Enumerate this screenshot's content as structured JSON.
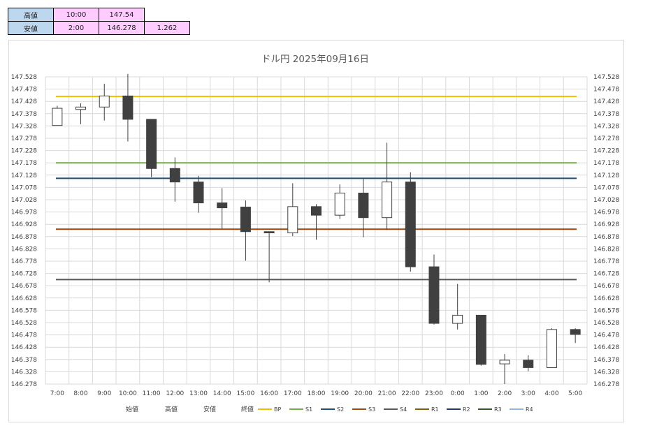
{
  "summary": {
    "high": {
      "label": "高値",
      "time": "10:00",
      "value": "147.54"
    },
    "low": {
      "label": "安値",
      "time": "2:00",
      "value": "146.278",
      "range": "1.262"
    }
  },
  "chart_data": {
    "type": "candlestick",
    "title": "ドル円  2025年09月16日",
    "ylim": [
      146.278,
      147.528
    ],
    "y_ticks": [
      "146.278",
      "146.328",
      "146.378",
      "146.428",
      "146.478",
      "146.528",
      "146.578",
      "146.628",
      "146.678",
      "146.728",
      "146.778",
      "146.828",
      "146.878",
      "146.928",
      "146.978",
      "147.028",
      "147.078",
      "147.128",
      "147.178",
      "147.228",
      "147.278",
      "147.328",
      "147.378",
      "147.428",
      "147.478",
      "147.528"
    ],
    "categories": [
      "7:00",
      "8:00",
      "9:00",
      "10:00",
      "11:00",
      "12:00",
      "13:00",
      "14:00",
      "15:00",
      "16:00",
      "17:00",
      "18:00",
      "19:00",
      "20:00",
      "21:00",
      "22:00",
      "23:00",
      "0:00",
      "1:00",
      "2:00",
      "3:00",
      "4:00",
      "5:00"
    ],
    "candles": [
      {
        "open": 147.33,
        "high": 147.41,
        "low": 147.33,
        "close": 147.4
      },
      {
        "open": 147.395,
        "high": 147.42,
        "low": 147.335,
        "close": 147.405
      },
      {
        "open": 147.405,
        "high": 147.5,
        "low": 147.35,
        "close": 147.45
      },
      {
        "open": 147.45,
        "high": 147.54,
        "low": 147.265,
        "close": 147.355
      },
      {
        "open": 147.355,
        "high": 147.355,
        "low": 147.12,
        "close": 147.155
      },
      {
        "open": 147.155,
        "high": 147.2,
        "low": 147.02,
        "close": 147.1
      },
      {
        "open": 147.1,
        "high": 147.125,
        "low": 146.975,
        "close": 147.015
      },
      {
        "open": 147.015,
        "high": 147.075,
        "low": 146.91,
        "close": 146.995
      },
      {
        "open": 146.998,
        "high": 147.025,
        "low": 146.78,
        "close": 146.898
      },
      {
        "open": 146.898,
        "high": 146.898,
        "low": 146.692,
        "close": 146.893
      },
      {
        "open": 146.893,
        "high": 147.095,
        "low": 146.88,
        "close": 147.0
      },
      {
        "open": 147.0,
        "high": 147.01,
        "low": 146.865,
        "close": 146.965
      },
      {
        "open": 146.965,
        "high": 147.09,
        "low": 146.95,
        "close": 147.055
      },
      {
        "open": 147.055,
        "high": 147.115,
        "low": 146.875,
        "close": 146.955
      },
      {
        "open": 146.955,
        "high": 147.26,
        "low": 146.905,
        "close": 147.1
      },
      {
        "open": 147.1,
        "high": 147.14,
        "low": 146.735,
        "close": 146.755
      },
      {
        "open": 146.755,
        "high": 146.805,
        "low": 146.52,
        "close": 146.525
      },
      {
        "open": 146.525,
        "high": 146.685,
        "low": 146.5,
        "close": 146.558
      },
      {
        "open": 146.558,
        "high": 146.558,
        "low": 146.353,
        "close": 146.358
      },
      {
        "open": 146.36,
        "high": 146.4,
        "low": 146.278,
        "close": 146.375
      },
      {
        "open": 146.375,
        "high": 146.395,
        "low": 146.33,
        "close": 146.345
      },
      {
        "open": 146.345,
        "high": 146.505,
        "low": 146.345,
        "close": 146.5
      },
      {
        "open": 146.5,
        "high": 146.505,
        "low": 146.445,
        "close": 146.48
      }
    ],
    "levels": [
      {
        "name": "BP",
        "value": 147.448,
        "color": "#f0c000"
      },
      {
        "name": "S1",
        "value": 147.178,
        "color": "#70ad47"
      },
      {
        "name": "S2",
        "value": 147.115,
        "color": "#1f4e79"
      },
      {
        "name": "S3",
        "value": 146.908,
        "color": "#9e480e"
      },
      {
        "name": "S4",
        "value": 146.703,
        "color": "#595959"
      }
    ],
    "legend_ohlc": [
      "始値",
      "高値",
      "安値",
      "終値"
    ],
    "legend_lines": [
      {
        "name": "BP",
        "color": "#f0c000"
      },
      {
        "name": "S1",
        "color": "#70ad47"
      },
      {
        "name": "S2",
        "color": "#1f4e79"
      },
      {
        "name": "S3",
        "color": "#9e480e"
      },
      {
        "name": "S4",
        "color": "#595959"
      },
      {
        "name": "R1",
        "color": "#7f6000"
      },
      {
        "name": "R2",
        "color": "#203864"
      },
      {
        "name": "R3",
        "color": "#375623"
      },
      {
        "name": "R4",
        "color": "#8fb8de"
      }
    ],
    "grid": true,
    "legend_position": "bottom",
    "bull_color": "#ffffff",
    "bear_color": "#404040"
  }
}
